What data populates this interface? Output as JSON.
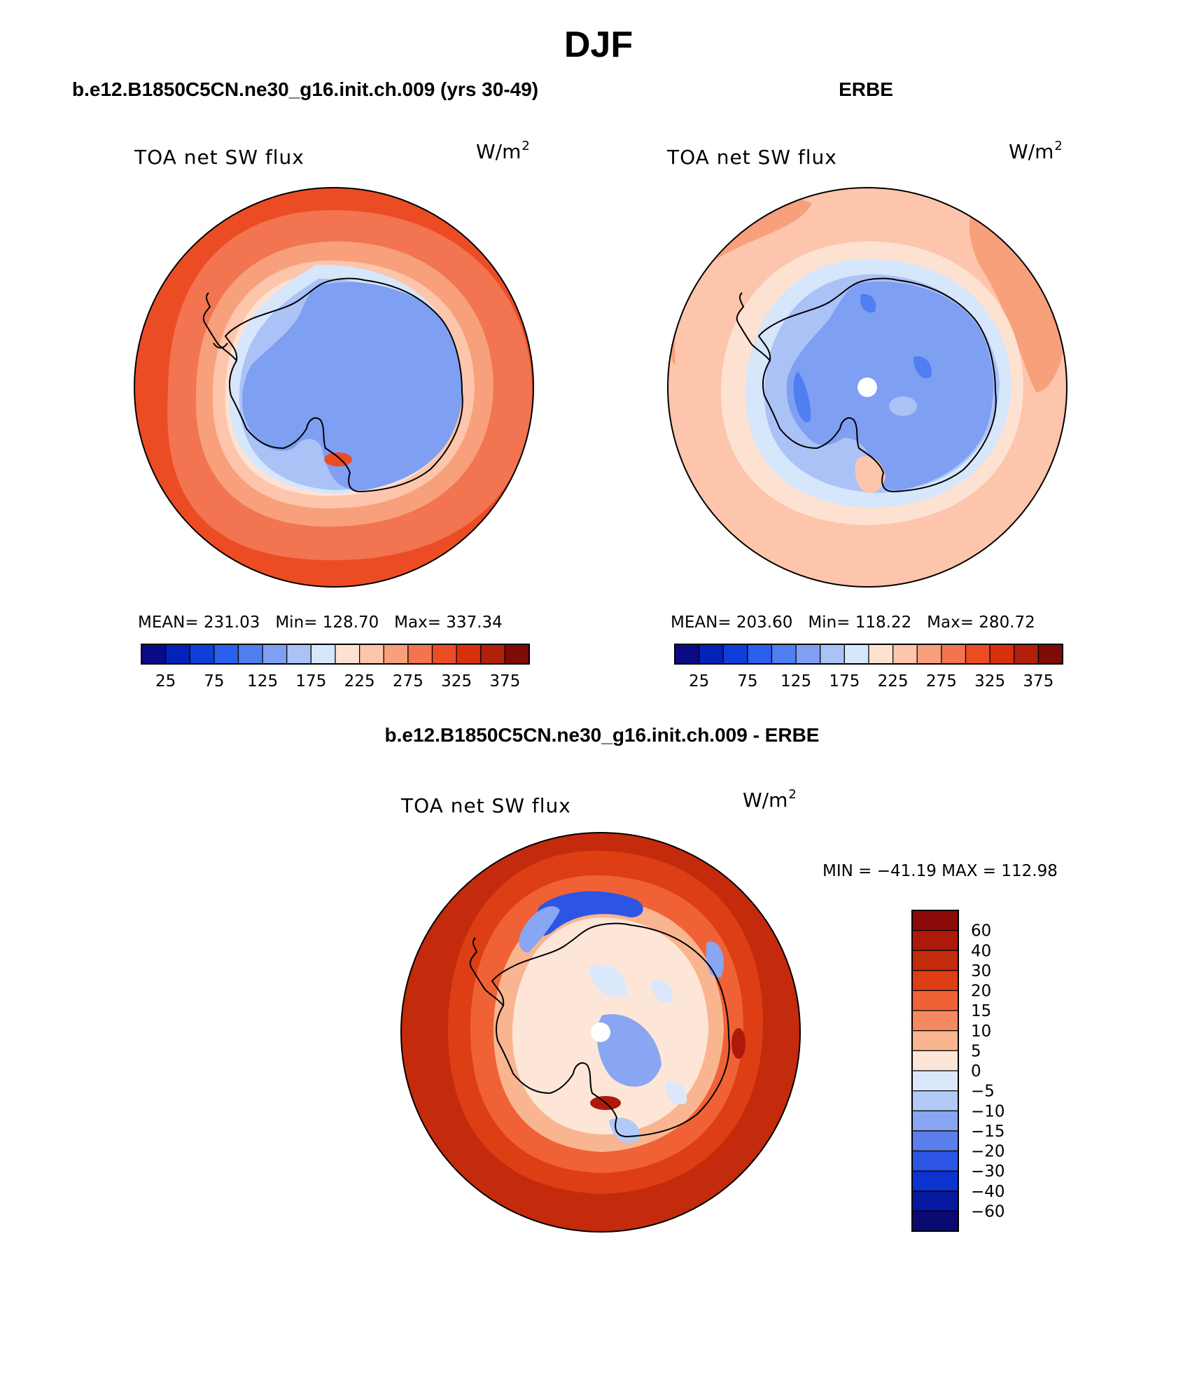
{
  "page": {
    "season_title": "DJF"
  },
  "panels": [
    {
      "id": "model",
      "title": "b.e12.B1850C5CN.ne30_g16.init.ch.009 (yrs 30-49)",
      "variable_label": "TOA net SW flux",
      "units": "W/m",
      "units_exponent": "2",
      "stats": {
        "mean_label": "MEAN=",
        "mean": "231.03",
        "min_label": "Min=",
        "min": "128.70",
        "max_label": "Max=",
        "max": "337.34"
      }
    },
    {
      "id": "obs",
      "title": "ERBE",
      "variable_label": "TOA net SW flux",
      "units": "W/m",
      "units_exponent": "2",
      "stats": {
        "mean_label": "MEAN=",
        "mean": "203.60",
        "min_label": "Min=",
        "min": "118.22",
        "max_label": "Max=",
        "max": "280.72"
      }
    },
    {
      "id": "diff",
      "title": "b.e12.B1850C5CN.ne30_g16.init.ch.009 - ERBE",
      "variable_label": "TOA net SW flux",
      "units": "W/m",
      "units_exponent": "2",
      "stats_line": "MIN = −41.19  MAX = 112.98"
    }
  ],
  "chart_data": [
    {
      "type": "heatmap",
      "title": "b.e12.B1850C5CN.ne30_g16.init.ch.009 (yrs 30-49)",
      "projection": "south polar stereographic",
      "variable": "TOA net SW flux",
      "units": "W/m2",
      "colorbar": {
        "orientation": "horizontal",
        "tick_labels": [
          "25",
          "75",
          "125",
          "175",
          "225",
          "275",
          "325",
          "375"
        ],
        "levels": [
          25,
          50,
          75,
          100,
          125,
          150,
          175,
          200,
          225,
          250,
          275,
          300,
          325,
          350,
          375
        ],
        "colors": [
          "#0a0a86",
          "#0522b8",
          "#0f3fd8",
          "#2b60ec",
          "#4f7ff0",
          "#7f9ff3",
          "#aac2f6",
          "#d6e6fb",
          "#fde2d2",
          "#fcc5ac",
          "#f7a07b",
          "#f27450",
          "#ec4c24",
          "#d8300f",
          "#b0200a",
          "#7e0b08"
        ]
      },
      "stats": {
        "mean": 231.03,
        "min": 128.7,
        "max": 337.34
      }
    },
    {
      "type": "heatmap",
      "title": "ERBE",
      "projection": "south polar stereographic",
      "variable": "TOA net SW flux",
      "units": "W/m2",
      "colorbar": {
        "orientation": "horizontal",
        "tick_labels": [
          "25",
          "75",
          "125",
          "175",
          "225",
          "275",
          "325",
          "375"
        ],
        "levels": [
          25,
          50,
          75,
          100,
          125,
          150,
          175,
          200,
          225,
          250,
          275,
          300,
          325,
          350,
          375
        ],
        "colors": [
          "#0a0a86",
          "#0522b8",
          "#0f3fd8",
          "#2b60ec",
          "#4f7ff0",
          "#7f9ff3",
          "#aac2f6",
          "#d6e6fb",
          "#fde2d2",
          "#fcc5ac",
          "#f7a07b",
          "#f27450",
          "#ec4c24",
          "#d8300f",
          "#b0200a",
          "#7e0b08"
        ]
      },
      "stats": {
        "mean": 203.6,
        "min": 118.22,
        "max": 280.72
      }
    },
    {
      "type": "heatmap",
      "title": "b.e12.B1850C5CN.ne30_g16.init.ch.009 - ERBE",
      "projection": "south polar stereographic",
      "variable": "TOA net SW flux",
      "units": "W/m2",
      "colorbar": {
        "orientation": "vertical",
        "tick_labels": [
          "60",
          "40",
          "30",
          "20",
          "15",
          "10",
          "5",
          "0",
          "−5",
          "−10",
          "−15",
          "−20",
          "−30",
          "−40",
          "−60"
        ],
        "levels": [
          60,
          40,
          30,
          20,
          15,
          10,
          5,
          0,
          -5,
          -10,
          -15,
          -20,
          -30,
          -40,
          -60
        ],
        "colors": [
          "#8c0a08",
          "#ad1a0a",
          "#c42a0c",
          "#de3e14",
          "#f06236",
          "#f58a62",
          "#f9b590",
          "#fde6d8",
          "#dbe8fb",
          "#b3c9f6",
          "#88a6f1",
          "#5a7fec",
          "#2d55e4",
          "#0c32cf",
          "#06189e",
          "#080a72"
        ]
      },
      "stats": {
        "min": -41.19,
        "max": 112.98
      }
    }
  ]
}
